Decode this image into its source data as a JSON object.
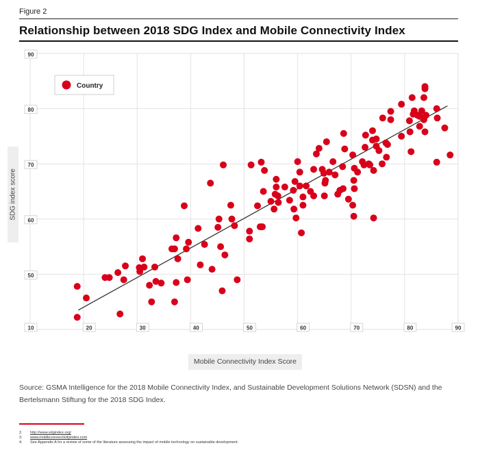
{
  "figure_label": "Figure 2",
  "title": "Relationship between 2018 SDG Index and Mobile Connectivity Index",
  "source_text": "Source: GSMA Intelligence for the 2018 Mobile Connectivity Index, and Sustainable Development Solutions Network (SDSN) and the Bertelsmann Stiftung for the 2018 SDG Index.",
  "footnotes": [
    {
      "num": "2.",
      "text": "http://www.sdgindex.org/"
    },
    {
      "num": "3.",
      "text": "www.mobileconnectivityindex.com"
    },
    {
      "num": "4.",
      "text": "See Appendix A for a review of some of the literature assessing the impact of mobile technology on sustainable development."
    }
  ],
  "colors": {
    "point": "#d8001a",
    "trend": "#333333",
    "grid": "#e2e2e2",
    "accent": "#d8001a"
  },
  "chart_data": {
    "type": "scatter",
    "xlabel": "Mobile Connectivity Index Score",
    "ylabel": "SDG index score",
    "xlim": [
      10,
      90
    ],
    "ylim": [
      40,
      90
    ],
    "x_ticks": [
      "10",
      "20",
      "30",
      "40",
      "50",
      "60",
      "70",
      "80",
      "90"
    ],
    "y_ticks": [
      "40",
      "50",
      "60",
      "70",
      "80",
      "90"
    ],
    "y_tick_labels_shown": [
      "50",
      "60",
      "70",
      "80",
      "90"
    ],
    "origin_label": "10",
    "grid": true,
    "legend": {
      "position": "top-left",
      "entries": [
        "Country"
      ]
    },
    "trendline": {
      "x": [
        19,
        88
      ],
      "y": [
        43.5,
        80.5
      ]
    },
    "series": [
      {
        "name": "Country",
        "points": [
          [
            18.8,
            47.8
          ],
          [
            18.8,
            42.2
          ],
          [
            20.5,
            45.7
          ],
          [
            24,
            49.4
          ],
          [
            24.8,
            49.4
          ],
          [
            26.4,
            50.3
          ],
          [
            26.8,
            42.8
          ],
          [
            27.5,
            49
          ],
          [
            27.8,
            51.5
          ],
          [
            30.4,
            51.2
          ],
          [
            30.5,
            50.5
          ],
          [
            31,
            52.8
          ],
          [
            31.3,
            51.3
          ],
          [
            32.3,
            48
          ],
          [
            32.7,
            45
          ],
          [
            33.3,
            51.3
          ],
          [
            33.5,
            48.7
          ],
          [
            34.5,
            48.4
          ],
          [
            36.5,
            54.6
          ],
          [
            37,
            54.6
          ],
          [
            37,
            45
          ],
          [
            37.3,
            48.5
          ],
          [
            37.3,
            56.6
          ],
          [
            37.6,
            52.8
          ],
          [
            38.8,
            62.4
          ],
          [
            39.2,
            54.6
          ],
          [
            39.4,
            49
          ],
          [
            39.6,
            55.8
          ],
          [
            41.4,
            58.3
          ],
          [
            41.8,
            51.7
          ],
          [
            42.6,
            55.4
          ],
          [
            43.7,
            66.5
          ],
          [
            44,
            50.9
          ],
          [
            45.1,
            58.5
          ],
          [
            45.3,
            60
          ],
          [
            45.6,
            55
          ],
          [
            45.9,
            47
          ],
          [
            46.1,
            69.8
          ],
          [
            46.4,
            53.5
          ],
          [
            47.5,
            62.5
          ],
          [
            47.7,
            60
          ],
          [
            48.2,
            58.8
          ],
          [
            48.7,
            49
          ],
          [
            51,
            56.4
          ],
          [
            51,
            57.8
          ],
          [
            51.3,
            69.8
          ],
          [
            52.5,
            62.4
          ],
          [
            53,
            58.6
          ],
          [
            53.2,
            70.3
          ],
          [
            53.4,
            58.6
          ],
          [
            53.6,
            65
          ],
          [
            53.8,
            68.8
          ],
          [
            55,
            63.2
          ],
          [
            55.6,
            61.8
          ],
          [
            55.8,
            64.5
          ],
          [
            56,
            67.2
          ],
          [
            56,
            65.8
          ],
          [
            56.3,
            64.2
          ],
          [
            56.4,
            63
          ],
          [
            57.6,
            65.8
          ],
          [
            58.5,
            63.4
          ],
          [
            59.2,
            65.2
          ],
          [
            59.3,
            61.8
          ],
          [
            59.5,
            66.8
          ],
          [
            59.7,
            60.2
          ],
          [
            60,
            70.4
          ],
          [
            60.4,
            66
          ],
          [
            60.4,
            68.5
          ],
          [
            60.7,
            57.5
          ],
          [
            61,
            62.5
          ],
          [
            61,
            64
          ],
          [
            61.6,
            66
          ],
          [
            62.4,
            65
          ],
          [
            63,
            64.2
          ],
          [
            63,
            69
          ],
          [
            63.5,
            71.8
          ],
          [
            64,
            72.8
          ],
          [
            64.6,
            69
          ],
          [
            64.9,
            68.3
          ],
          [
            65,
            64.2
          ],
          [
            65.1,
            66.5
          ],
          [
            65.2,
            67
          ],
          [
            65.4,
            74
          ],
          [
            65.9,
            68.5
          ],
          [
            66.6,
            70.4
          ],
          [
            67,
            68
          ],
          [
            67.5,
            64.5
          ],
          [
            67.9,
            65.2
          ],
          [
            68.4,
            69.5
          ],
          [
            68.5,
            65.5
          ],
          [
            68.6,
            75.5
          ],
          [
            68.8,
            72.7
          ],
          [
            69.5,
            63.6
          ],
          [
            70.3,
            71.6
          ],
          [
            70.3,
            62.5
          ],
          [
            70.5,
            60.5
          ],
          [
            70.5,
            67
          ],
          [
            70.6,
            65.5
          ],
          [
            70.6,
            69.2
          ],
          [
            71.2,
            68.5
          ],
          [
            72.1,
            70.4
          ],
          [
            72.4,
            69.8
          ],
          [
            72.6,
            73
          ],
          [
            72.7,
            75.2
          ],
          [
            73.3,
            70
          ],
          [
            73.5,
            69.8
          ],
          [
            74,
            74.3
          ],
          [
            74,
            76
          ],
          [
            74.2,
            68.8
          ],
          [
            74.2,
            60.2
          ],
          [
            74.7,
            74.5
          ],
          [
            74.7,
            73.2
          ],
          [
            75.2,
            72.4
          ],
          [
            75.8,
            70
          ],
          [
            75.9,
            78.3
          ],
          [
            76.5,
            73.8
          ],
          [
            76.6,
            71.2
          ],
          [
            76.8,
            73.5
          ],
          [
            77.4,
            78
          ],
          [
            77.4,
            79.5
          ],
          [
            79.4,
            75
          ],
          [
            79.4,
            80.8
          ],
          [
            80.9,
            77.8
          ],
          [
            81,
            75.8
          ],
          [
            81.2,
            72.2
          ],
          [
            81.4,
            82
          ],
          [
            81.6,
            79
          ],
          [
            81.8,
            79.6
          ],
          [
            82.4,
            78.8
          ],
          [
            82.8,
            76.8
          ],
          [
            82.8,
            78.6
          ],
          [
            83.2,
            79.6
          ],
          [
            83.6,
            78
          ],
          [
            83.6,
            82
          ],
          [
            83.8,
            84
          ],
          [
            83.8,
            83.6
          ],
          [
            83.8,
            75.8
          ],
          [
            84,
            78.8
          ],
          [
            86,
            70.3
          ],
          [
            86,
            80
          ],
          [
            86.1,
            78.3
          ],
          [
            87.5,
            76.5
          ],
          [
            88.5,
            71.6
          ]
        ]
      }
    ]
  }
}
